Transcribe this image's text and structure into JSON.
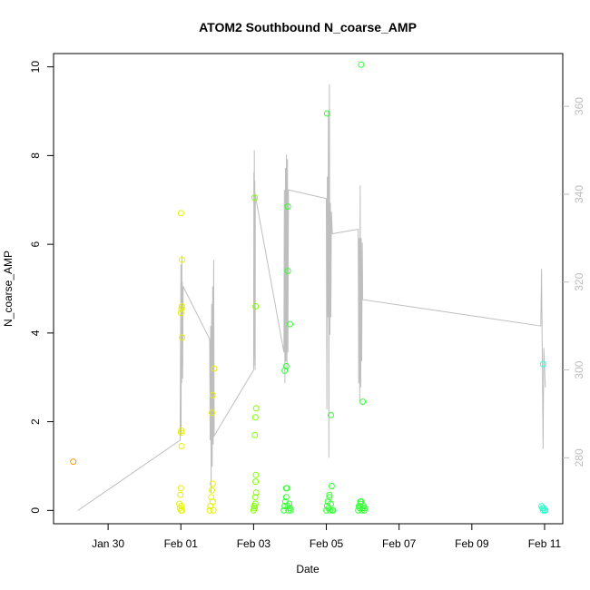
{
  "chart_data": {
    "type": "scatter",
    "title": "ATOM2 Southbound N_coarse_AMP",
    "xlabel": "Date",
    "ylabel": "N_coarse_AMP",
    "xlim": [
      "2022-01-28T12:00",
      "2022-02-11T12:00"
    ],
    "ylim": [
      -0.3,
      10.3
    ],
    "x_ticks": [
      {
        "date": "2022-01-30",
        "label": "Jan 30"
      },
      {
        "date": "2022-02-01",
        "label": "Feb 01"
      },
      {
        "date": "2022-02-03",
        "label": "Feb 03"
      },
      {
        "date": "2022-02-05",
        "label": "Feb 05"
      },
      {
        "date": "2022-02-07",
        "label": "Feb 07"
      },
      {
        "date": "2022-02-09",
        "label": "Feb 09"
      },
      {
        "date": "2022-02-11",
        "label": "Feb 11"
      }
    ],
    "y_ticks": [
      0,
      2,
      4,
      6,
      8,
      10
    ],
    "y2lim": [
      265,
      372
    ],
    "y2_ticks": [
      280,
      300,
      320,
      340,
      360
    ],
    "grid": false,
    "colors": {
      "orange": "#ff9900",
      "yellow": "#e5f200",
      "lime": "#80ff00",
      "green": "#33ff33",
      "teal": "#33ffcc",
      "line": "#bebebe",
      "right_axis": "#bdbdbd"
    },
    "series": [
      {
        "color": "orange",
        "points": [
          [
            "2022-01-29T01:00",
            1.1
          ]
        ]
      },
      {
        "color": "yellow",
        "points": [
          [
            "2022-01-31T23:00",
            0.15
          ],
          [
            "2022-01-31T23:20",
            0.05
          ],
          [
            "2022-01-31T23:40",
            0.35
          ],
          [
            "2022-02-01T00:00",
            0.5
          ],
          [
            "2022-02-01T00:10",
            0.0
          ],
          [
            "2022-02-01T00:20",
            0.1
          ],
          [
            "2022-02-01T00:40",
            0.0
          ],
          [
            "2022-02-01T00:15",
            1.8
          ],
          [
            "2022-02-01T00:30",
            1.45
          ],
          [
            "2022-02-01T00:05",
            1.75
          ],
          [
            "2022-02-01T00:00",
            4.45
          ],
          [
            "2022-02-01T00:20",
            4.55
          ],
          [
            "2022-02-01T00:40",
            4.6
          ],
          [
            "2022-02-01T00:50",
            3.9
          ],
          [
            "2022-02-01T00:45",
            5.65
          ],
          [
            "2022-02-01T00:05",
            6.7
          ],
          [
            "2022-02-01T19:00",
            0.0
          ],
          [
            "2022-02-01T19:30",
            0.1
          ],
          [
            "2022-02-01T20:00",
            0.3
          ],
          [
            "2022-02-01T20:30",
            0.45
          ],
          [
            "2022-02-01T21:00",
            0.6
          ],
          [
            "2022-02-01T21:30",
            0.0
          ],
          [
            "2022-02-01T21:00",
            0.2
          ],
          [
            "2022-02-01T20:30",
            2.2
          ],
          [
            "2022-02-01T21:00",
            2.6
          ],
          [
            "2022-02-01T22:00",
            3.2
          ]
        ]
      },
      {
        "color": "lime",
        "points": [
          [
            "2022-02-03T00:00",
            0.0
          ],
          [
            "2022-02-03T00:20",
            0.1
          ],
          [
            "2022-02-03T00:40",
            0.05
          ],
          [
            "2022-02-03T01:00",
            0.3
          ],
          [
            "2022-02-03T01:10",
            0.15
          ],
          [
            "2022-02-03T01:20",
            0.65
          ],
          [
            "2022-02-03T01:30",
            0.8
          ],
          [
            "2022-02-03T01:40",
            0.4
          ],
          [
            "2022-02-03T00:50",
            1.7
          ],
          [
            "2022-02-03T01:10",
            2.1
          ],
          [
            "2022-02-03T01:40",
            2.3
          ],
          [
            "2022-02-03T01:20",
            4.6
          ],
          [
            "2022-02-03T00:40",
            7.05
          ]
        ]
      },
      {
        "color": "green",
        "points": [
          [
            "2022-02-03T20:00",
            0.0
          ],
          [
            "2022-02-03T20:30",
            0.1
          ],
          [
            "2022-02-03T21:00",
            0.2
          ],
          [
            "2022-02-03T21:30",
            0.3
          ],
          [
            "2022-02-03T22:00",
            0.5
          ],
          [
            "2022-02-03T22:30",
            0.1
          ],
          [
            "2022-02-03T23:00",
            0.0
          ],
          [
            "2022-02-03T23:30",
            0.15
          ],
          [
            "2022-02-04T00:00",
            0.05
          ],
          [
            "2022-02-04T00:30",
            0.0
          ],
          [
            "2022-02-03T21:30",
            0.5
          ],
          [
            "2022-02-03T20:30",
            3.15
          ],
          [
            "2022-02-03T21:30",
            3.25
          ],
          [
            "2022-02-03T22:30",
            5.4
          ],
          [
            "2022-02-04T00:00",
            4.2
          ],
          [
            "2022-02-03T22:30",
            6.85
          ],
          [
            "2022-02-05T00:00",
            0.0
          ],
          [
            "2022-02-05T00:30",
            0.1
          ],
          [
            "2022-02-05T01:00",
            0.2
          ],
          [
            "2022-02-05T01:30",
            0.05
          ],
          [
            "2022-02-05T02:00",
            0.3
          ],
          [
            "2022-02-05T02:30",
            0.0
          ],
          [
            "2022-02-05T03:00",
            0.15
          ],
          [
            "2022-02-05T03:30",
            0.55
          ],
          [
            "2022-02-05T04:00",
            0.0
          ],
          [
            "2022-02-05T02:00",
            0.35
          ],
          [
            "2022-02-05T04:30",
            0.0
          ],
          [
            "2022-02-05T03:00",
            2.15
          ],
          [
            "2022-02-05T00:30",
            8.95
          ],
          [
            "2022-02-05T21:00",
            0.0
          ],
          [
            "2022-02-05T21:30",
            0.1
          ],
          [
            "2022-02-05T22:00",
            0.05
          ],
          [
            "2022-02-05T22:30",
            0.15
          ],
          [
            "2022-02-05T23:00",
            0.2
          ],
          [
            "2022-02-05T23:30",
            0.0
          ],
          [
            "2022-02-06T00:00",
            0.05
          ],
          [
            "2022-02-06T00:30",
            0.1
          ],
          [
            "2022-02-06T01:00",
            0.0
          ],
          [
            "2022-02-06T01:30",
            0.05
          ],
          [
            "2022-02-05T22:30",
            0.2
          ],
          [
            "2022-02-06T00:00",
            2.45
          ],
          [
            "2022-02-05T23:00",
            10.05
          ]
        ]
      },
      {
        "color": "teal",
        "points": [
          [
            "2022-02-10T22:00",
            0.1
          ],
          [
            "2022-02-10T22:30",
            0.05
          ],
          [
            "2022-02-10T23:00",
            0.0
          ],
          [
            "2022-02-10T23:30",
            0.05
          ],
          [
            "2022-02-11T00:00",
            0.0
          ],
          [
            "2022-02-11T00:30",
            0.0
          ],
          [
            "2022-02-10T23:00",
            3.3
          ]
        ]
      }
    ],
    "secondary_line": {
      "axis": "right",
      "color": "line",
      "points": [
        [
          "2022-01-29T04:00",
          268
        ],
        [
          "2022-01-31T23:30",
          284
        ],
        [
          "2022-02-01T00:00",
          324
        ],
        [
          "2022-02-01T00:10",
          285
        ],
        [
          "2022-02-01T00:20",
          320
        ],
        [
          "2022-02-01T00:30",
          297
        ],
        [
          "2022-02-01T00:40",
          326
        ],
        [
          "2022-02-01T00:50",
          301
        ],
        [
          "2022-02-01T01:00",
          320
        ],
        [
          "2022-02-01T01:10",
          298
        ],
        [
          "2022-02-01T01:30",
          319
        ],
        [
          "2022-02-01T19:00",
          307
        ],
        [
          "2022-02-01T19:20",
          284
        ],
        [
          "2022-02-01T19:40",
          310
        ],
        [
          "2022-02-01T20:00",
          272
        ],
        [
          "2022-02-01T20:20",
          315
        ],
        [
          "2022-02-01T20:40",
          278
        ],
        [
          "2022-02-01T21:00",
          319
        ],
        [
          "2022-02-01T21:20",
          283
        ],
        [
          "2022-02-01T21:40",
          325
        ],
        [
          "2022-02-01T22:00",
          285
        ],
        [
          "2022-02-03T00:00",
          300
        ],
        [
          "2022-02-03T00:10",
          345
        ],
        [
          "2022-02-03T00:20",
          301
        ],
        [
          "2022-02-03T00:30",
          350
        ],
        [
          "2022-02-03T00:40",
          303
        ],
        [
          "2022-02-03T00:50",
          343
        ],
        [
          "2022-02-03T01:00",
          300
        ],
        [
          "2022-02-03T01:10",
          340
        ],
        [
          "2022-02-03T01:30",
          339
        ],
        [
          "2022-02-03T20:00",
          304
        ],
        [
          "2022-02-03T20:20",
          341
        ],
        [
          "2022-02-03T20:40",
          297
        ],
        [
          "2022-02-03T21:00",
          346
        ],
        [
          "2022-02-03T21:20",
          302
        ],
        [
          "2022-02-03T21:40",
          349
        ],
        [
          "2022-02-03T22:00",
          300
        ],
        [
          "2022-02-03T22:20",
          348
        ],
        [
          "2022-02-03T22:40",
          304
        ],
        [
          "2022-02-03T23:00",
          341
        ],
        [
          "2022-02-05T00:00",
          339
        ],
        [
          "2022-02-05T00:20",
          291
        ],
        [
          "2022-02-05T00:40",
          344
        ],
        [
          "2022-02-05T01:00",
          312
        ],
        [
          "2022-02-05T01:20",
          359
        ],
        [
          "2022-02-05T01:40",
          280
        ],
        [
          "2022-02-05T02:00",
          365
        ],
        [
          "2022-02-05T02:20",
          308
        ],
        [
          "2022-02-05T02:40",
          338
        ],
        [
          "2022-02-05T03:00",
          312
        ],
        [
          "2022-02-05T03:20",
          336
        ],
        [
          "2022-02-05T04:00",
          331
        ],
        [
          "2022-02-05T21:00",
          332
        ],
        [
          "2022-02-05T21:20",
          297
        ],
        [
          "2022-02-05T21:40",
          330
        ],
        [
          "2022-02-05T22:00",
          293
        ],
        [
          "2022-02-05T22:20",
          342
        ],
        [
          "2022-02-05T22:40",
          296
        ],
        [
          "2022-02-05T23:00",
          330
        ],
        [
          "2022-02-05T23:20",
          302
        ],
        [
          "2022-02-05T23:40",
          329
        ],
        [
          "2022-02-06T00:00",
          316
        ],
        [
          "2022-02-10T21:30",
          310
        ],
        [
          "2022-02-10T22:00",
          323
        ],
        [
          "2022-02-10T22:30",
          302
        ],
        [
          "2022-02-10T23:00",
          282
        ],
        [
          "2022-02-10T23:30",
          305
        ],
        [
          "2022-02-11T00:30",
          296
        ]
      ]
    }
  }
}
